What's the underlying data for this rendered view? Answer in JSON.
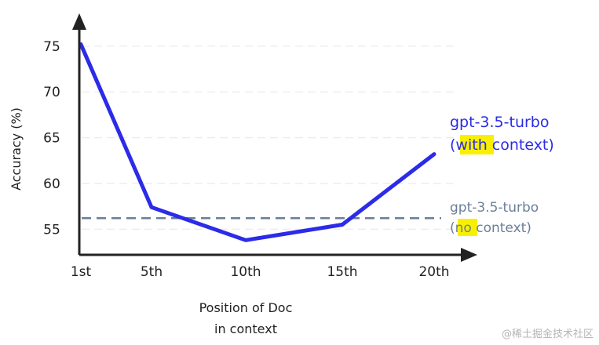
{
  "chart_data": {
    "type": "line",
    "categories": [
      "1st",
      "5th",
      "10th",
      "15th",
      "20th"
    ],
    "series": [
      {
        "values": [
          75.2,
          57.4,
          53.8,
          55.5,
          63.2
        ],
        "color": "#2b2be8"
      }
    ],
    "baseline": {
      "value": 56.2,
      "color": "#6b7f99",
      "style": "dashed"
    },
    "xlabel": [
      "Position of Doc",
      "in context"
    ],
    "ylabel": "Accuracy (%)",
    "yticks": [
      55,
      60,
      65,
      70,
      75
    ],
    "ylim": [
      52.2,
      78.5
    ],
    "grid": true,
    "annotations": {
      "with_context": {
        "line1": "gpt-3.5-turbo",
        "paren_open": "(",
        "highlight": "with",
        "rest": " context)",
        "color": "#2b2be8",
        "highlight_color": "#f8f000"
      },
      "no_context": {
        "line1": "gpt-3.5-turbo",
        "paren_open": "(",
        "highlight": "no",
        "rest": " context)",
        "color": "#6b7f99",
        "highlight_color": "#f8f000"
      }
    }
  },
  "watermark": "@稀土掘金技术社区"
}
